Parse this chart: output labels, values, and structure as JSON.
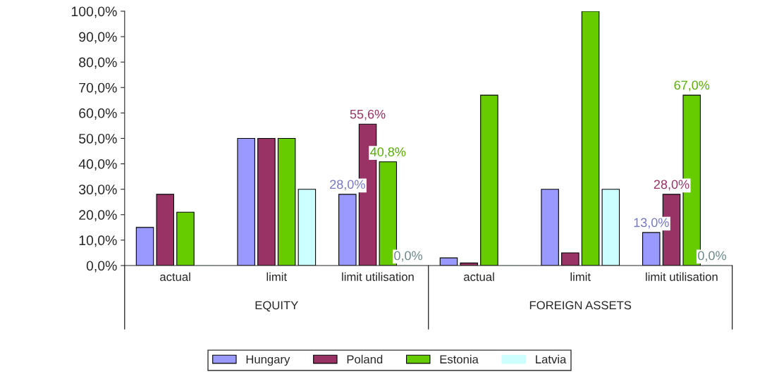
{
  "chart_data": {
    "type": "bar",
    "categories": [
      "actual",
      "limit",
      "limit utilisation",
      "actual",
      "limit",
      "limit utilisation"
    ],
    "series": [
      {
        "name": "Hungary",
        "color": "#9999ff",
        "values": [
          15,
          50,
          28.0,
          3,
          30,
          13.0
        ],
        "value_labels": [
          null,
          null,
          "28,0%",
          null,
          null,
          "13,0%"
        ]
      },
      {
        "name": "Poland",
        "color": "#993366",
        "values": [
          28,
          50,
          55.6,
          1,
          5,
          28.0
        ],
        "value_labels": [
          null,
          null,
          "55,6%",
          null,
          null,
          "28,0%"
        ]
      },
      {
        "name": "Estonia",
        "color": "#66cc00",
        "values": [
          21,
          50,
          40.8,
          67,
          100,
          67.0
        ],
        "value_labels": [
          null,
          null,
          "40,8%",
          null,
          null,
          "67,0%"
        ]
      },
      {
        "name": "Latvia",
        "color": "#ccffff",
        "values": [
          0,
          30,
          0.0,
          0,
          30,
          0.0
        ],
        "value_labels": [
          null,
          null,
          "0,0%",
          null,
          null,
          "0,0%"
        ]
      }
    ],
    "ylim": [
      0,
      100
    ],
    "yticks": [
      {
        "value": 0,
        "label": "0,0%"
      },
      {
        "value": 10,
        "label": "10,0%"
      },
      {
        "value": 20,
        "label": "20,0%"
      },
      {
        "value": 30,
        "label": "30,0%"
      },
      {
        "value": 40,
        "label": "40,0%"
      },
      {
        "value": 50,
        "label": "50,0%"
      },
      {
        "value": 60,
        "label": "60,0%"
      },
      {
        "value": 70,
        "label": "70,0%"
      },
      {
        "value": 80,
        "label": "80,0%"
      },
      {
        "value": 90,
        "label": "90,0%"
      },
      {
        "value": 100,
        "label": "100,0%"
      }
    ],
    "annotations": [
      "EQUITY",
      "FOREIGN ASSETS"
    ],
    "grid": false,
    "legend": "bottom"
  }
}
